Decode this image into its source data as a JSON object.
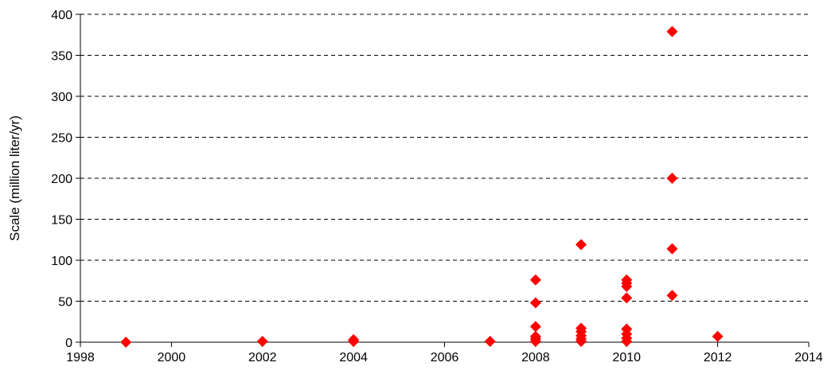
{
  "chart_data": {
    "type": "scatter",
    "title": "",
    "xlabel": "",
    "ylabel": "Scale (million liter/yr)",
    "xlim": [
      1998,
      2014
    ],
    "ylim": [
      0,
      400
    ],
    "x_ticks": [
      1998,
      2000,
      2002,
      2004,
      2006,
      2008,
      2010,
      2012,
      2014
    ],
    "y_ticks": [
      0,
      50,
      100,
      150,
      200,
      250,
      300,
      350,
      400
    ],
    "grid": "horizontal-dashed",
    "marker": "diamond",
    "colors": {
      "marker": "#ff0000",
      "axis": "#000000",
      "grid": "#000000"
    },
    "series": [
      {
        "points": [
          [
            1999,
            0
          ],
          [
            2002,
            1
          ],
          [
            2004,
            1
          ],
          [
            2004,
            3
          ],
          [
            2007,
            1
          ],
          [
            2008,
            1
          ],
          [
            2008,
            4
          ],
          [
            2008,
            7
          ],
          [
            2008,
            19
          ],
          [
            2008,
            48
          ],
          [
            2008,
            76
          ],
          [
            2009,
            1
          ],
          [
            2009,
            4
          ],
          [
            2009,
            8
          ],
          [
            2009,
            13
          ],
          [
            2009,
            17
          ],
          [
            2009,
            119
          ],
          [
            2010,
            1
          ],
          [
            2010,
            5
          ],
          [
            2010,
            10
          ],
          [
            2010,
            16
          ],
          [
            2010,
            54
          ],
          [
            2010,
            68
          ],
          [
            2010,
            72
          ],
          [
            2010,
            76
          ],
          [
            2011,
            57
          ],
          [
            2011,
            114
          ],
          [
            2011,
            200
          ],
          [
            2011,
            379
          ],
          [
            2012,
            7
          ]
        ]
      }
    ]
  }
}
